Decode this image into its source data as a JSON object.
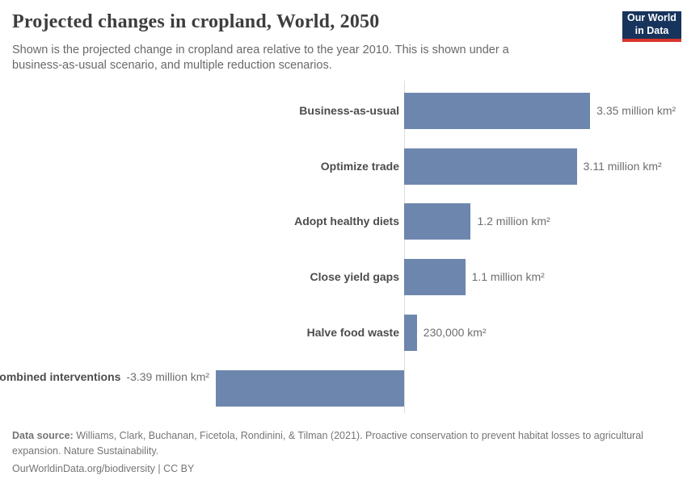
{
  "header": {
    "title": "Projected changes in cropland, World, 2050",
    "subtitle": "Shown is the projected change in cropland area relative to the year 2010. This is shown under a business-as-usual scenario, and multiple reduction scenarios."
  },
  "logo": {
    "line1": "Our World",
    "line2": "in Data",
    "bg_color": "#16345c",
    "accent_color": "#d8352e"
  },
  "chart_data": {
    "type": "bar",
    "orientation": "horizontal",
    "title": "Projected changes in cropland, World, 2050",
    "unit": "million km²",
    "categories": [
      "Business-as-usual",
      "Optimize trade",
      "Adopt healthy diets",
      "Close yield gaps",
      "Halve food waste",
      "Combined interventions"
    ],
    "values": [
      3.35,
      3.11,
      1.2,
      1.1,
      0.23,
      -3.39
    ],
    "value_labels": [
      "3.35 million km²",
      "3.11 million km²",
      "1.2 million km²",
      "1.1 million km²",
      "230,000 km²",
      "-3.39 million km²"
    ],
    "xlim": [
      -3.39,
      3.35
    ],
    "baseline_value": 0,
    "grid": false,
    "legend": false,
    "bar_color": "#6d86ad",
    "axis_color": "#dcdcdc"
  },
  "footer": {
    "source_label": "Data source:",
    "source_text": "Williams, Clark, Buchanan, Ficetola, Rondinini, & Tilman (2021). Proactive conservation to prevent habitat losses to agricultural expansion. Nature Sustainability.",
    "citation": "OurWorldinData.org/biodiversity | CC BY"
  }
}
